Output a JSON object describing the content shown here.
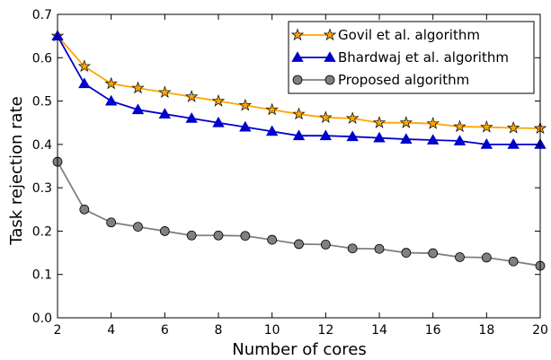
{
  "chart_data": {
    "type": "line",
    "title": "",
    "xlabel": "Number of cores",
    "ylabel": "Task rejection rate",
    "xlim": [
      2,
      20
    ],
    "ylim": [
      0.0,
      0.7
    ],
    "xticks": [
      "2",
      "4",
      "6",
      "8",
      "10",
      "12",
      "14",
      "16",
      "18",
      "20"
    ],
    "yticks": [
      "0.0",
      "0.1",
      "0.2",
      "0.3",
      "0.4",
      "0.5",
      "0.6",
      "0.7"
    ],
    "grid": false,
    "legend_position": "top-right",
    "x": [
      2,
      3,
      4,
      5,
      6,
      7,
      8,
      9,
      10,
      11,
      12,
      13,
      14,
      15,
      16,
      17,
      18,
      19,
      20
    ],
    "series": [
      {
        "name": "Govil et al. algorithm",
        "color": "#ffa500",
        "marker": "star",
        "values": [
          0.65,
          0.58,
          0.54,
          0.53,
          0.52,
          0.51,
          0.5,
          0.49,
          0.48,
          0.47,
          0.462,
          0.46,
          0.45,
          0.45,
          0.448,
          0.441,
          0.44,
          0.438,
          0.437
        ]
      },
      {
        "name": "Bhardwaj et al. algorithm",
        "color": "#0000cc",
        "marker": "triangle",
        "values": [
          0.65,
          0.54,
          0.5,
          0.48,
          0.47,
          0.46,
          0.45,
          0.44,
          0.43,
          0.42,
          0.42,
          0.418,
          0.415,
          0.412,
          0.41,
          0.408,
          0.4,
          0.4,
          0.4
        ]
      },
      {
        "name": "Proposed algorithm",
        "color": "#808080",
        "marker": "circle",
        "values": [
          0.36,
          0.25,
          0.22,
          0.21,
          0.2,
          0.19,
          0.19,
          0.189,
          0.18,
          0.17,
          0.169,
          0.16,
          0.159,
          0.15,
          0.149,
          0.14,
          0.139,
          0.13,
          0.12
        ]
      }
    ]
  }
}
